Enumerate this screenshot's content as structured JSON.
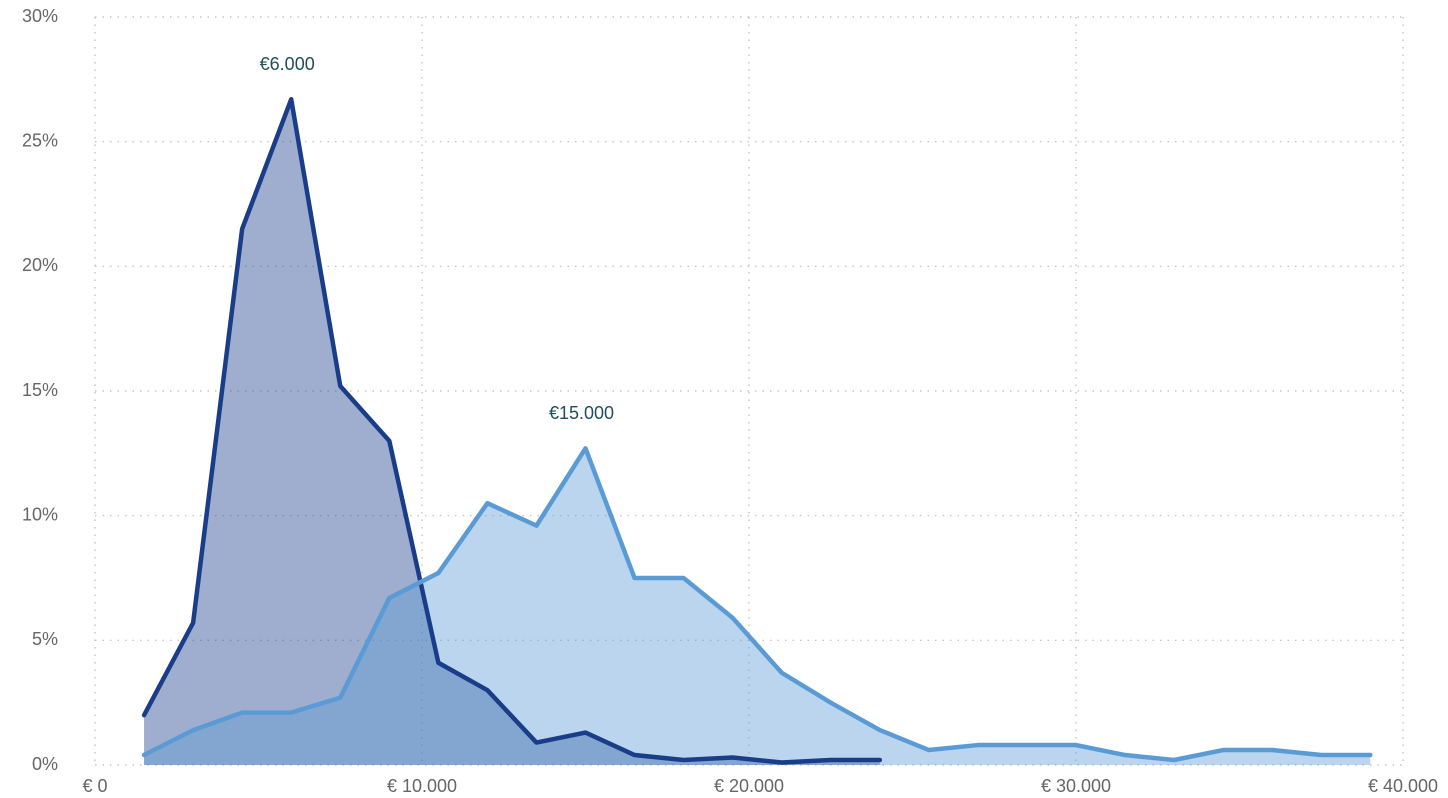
{
  "chart_data": {
    "type": "area",
    "series": [
      {
        "color": "#1a3d8a",
        "x": [
          1500,
          3000,
          4500,
          6000,
          7500,
          9000,
          10500,
          12000,
          13500,
          15000,
          16500,
          18000,
          19500,
          21000,
          22500,
          24000
        ],
        "values": [
          2.0,
          5.7,
          21.5,
          26.7,
          15.2,
          13.0,
          4.1,
          3.0,
          0.9,
          1.3,
          0.4,
          0.2,
          0.3,
          0.1,
          0.2,
          0.2
        ]
      },
      {
        "color": "#5b9bd5",
        "x": [
          1500,
          3000,
          4500,
          6000,
          7500,
          9000,
          10500,
          12000,
          13500,
          15000,
          16500,
          18000,
          19500,
          21000,
          22500,
          24000,
          25500,
          27000,
          28500,
          30000,
          31500,
          33000,
          34500,
          36000,
          37500,
          39000
        ],
        "values": [
          0.4,
          1.4,
          2.1,
          2.1,
          2.7,
          6.7,
          7.7,
          10.5,
          9.6,
          12.7,
          7.5,
          7.5,
          5.9,
          3.7,
          2.5,
          1.4,
          0.6,
          0.8,
          0.8,
          0.8,
          0.4,
          0.2,
          0.6,
          0.6,
          0.4,
          0.4
        ]
      }
    ],
    "annotations": [
      {
        "text": "€6.000",
        "x": 6000
      },
      {
        "text": "€15.000",
        "x": 15000
      }
    ],
    "xlim": [
      0,
      40000
    ],
    "xticks": [
      {
        "value": 0,
        "label": "€ 0"
      },
      {
        "value": 10000,
        "label": "€ 10.000"
      },
      {
        "value": 20000,
        "label": "€ 20.000"
      },
      {
        "value": 30000,
        "label": "€ 30.000"
      },
      {
        "value": 40000,
        "label": "€ 40.000"
      }
    ],
    "ylim": [
      0,
      30
    ],
    "yticks": [
      {
        "value": 0,
        "label": "0%"
      },
      {
        "value": 5,
        "label": "5%"
      },
      {
        "value": 10,
        "label": "10%"
      },
      {
        "value": 15,
        "label": "15%"
      },
      {
        "value": 20,
        "label": "20%"
      },
      {
        "value": 25,
        "label": "25%"
      },
      {
        "value": 30,
        "label": "30%"
      }
    ],
    "grid": true
  }
}
